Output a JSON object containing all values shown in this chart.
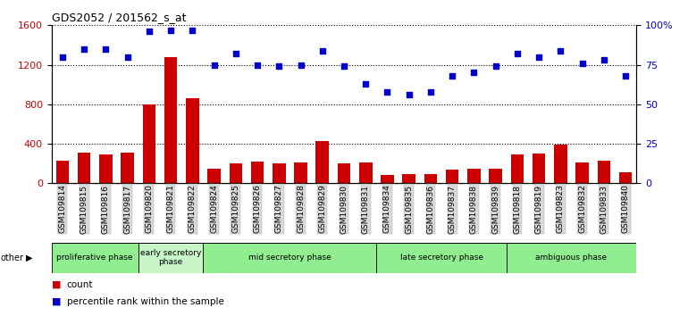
{
  "title": "GDS2052 / 201562_s_at",
  "samples": [
    "GSM109814",
    "GSM109815",
    "GSM109816",
    "GSM109817",
    "GSM109820",
    "GSM109821",
    "GSM109822",
    "GSM109824",
    "GSM109825",
    "GSM109826",
    "GSM109827",
    "GSM109828",
    "GSM109829",
    "GSM109830",
    "GSM109831",
    "GSM109834",
    "GSM109835",
    "GSM109836",
    "GSM109837",
    "GSM109838",
    "GSM109839",
    "GSM109818",
    "GSM109819",
    "GSM109823",
    "GSM109832",
    "GSM109833",
    "GSM109840"
  ],
  "counts": [
    230,
    310,
    290,
    310,
    800,
    1280,
    860,
    150,
    200,
    220,
    200,
    210,
    430,
    200,
    210,
    80,
    90,
    90,
    140,
    150,
    150,
    295,
    305,
    390,
    210,
    225,
    110
  ],
  "percentiles": [
    80,
    85,
    85,
    80,
    96,
    97,
    97,
    75,
    82,
    75,
    74,
    75,
    84,
    74,
    63,
    58,
    56,
    58,
    68,
    70,
    74,
    82,
    80,
    84,
    76,
    78,
    68
  ],
  "phases": [
    {
      "label": "proliferative phase",
      "start": 0,
      "end": 4,
      "color": "#90EE90"
    },
    {
      "label": "early secretory\nphase",
      "start": 4,
      "end": 7,
      "color": "#c8f5c8"
    },
    {
      "label": "mid secretory phase",
      "start": 7,
      "end": 15,
      "color": "#90EE90"
    },
    {
      "label": "late secretory phase",
      "start": 15,
      "end": 21,
      "color": "#90EE90"
    },
    {
      "label": "ambiguous phase",
      "start": 21,
      "end": 27,
      "color": "#90EE90"
    }
  ],
  "bar_color": "#cc0000",
  "dot_color": "#0000cc",
  "ylim_left": [
    0,
    1600
  ],
  "ylim_right": [
    0,
    100
  ],
  "yticks_left": [
    0,
    400,
    800,
    1200,
    1600
  ],
  "yticks_right": [
    0,
    25,
    50,
    75,
    100
  ],
  "yticklabels_right": [
    "0",
    "25",
    "50",
    "75",
    "100%"
  ],
  "bg_color": "#ffffff",
  "tickbox_color": "#d8d8d8"
}
